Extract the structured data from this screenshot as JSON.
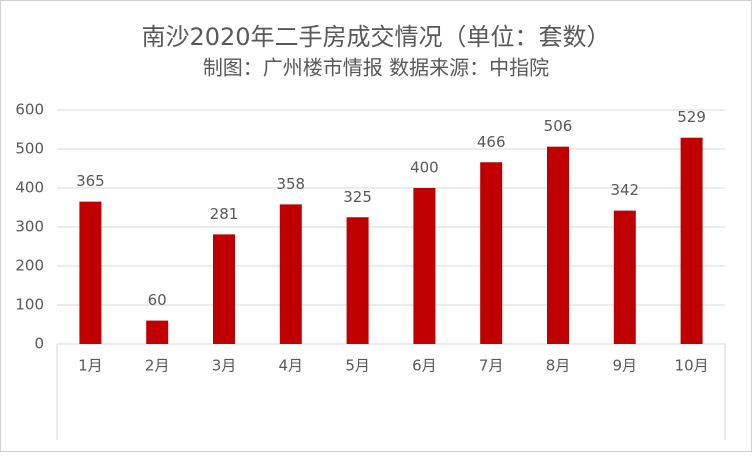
{
  "chart_data": {
    "type": "bar",
    "title": "南沙2020年二手房成交情况（单位：套数）",
    "subtitle": "制图：广州楼市情报  数据来源：中指院",
    "categories": [
      "1月",
      "2月",
      "3月",
      "4月",
      "5月",
      "6月",
      "7月",
      "8月",
      "9月",
      "10月"
    ],
    "values": [
      365,
      60,
      281,
      358,
      325,
      400,
      466,
      506,
      342,
      529
    ],
    "color": "#c00000",
    "ylim": [
      0,
      600
    ],
    "yticks": [
      0,
      100,
      200,
      300,
      400,
      500,
      600
    ],
    "grid": true
  }
}
